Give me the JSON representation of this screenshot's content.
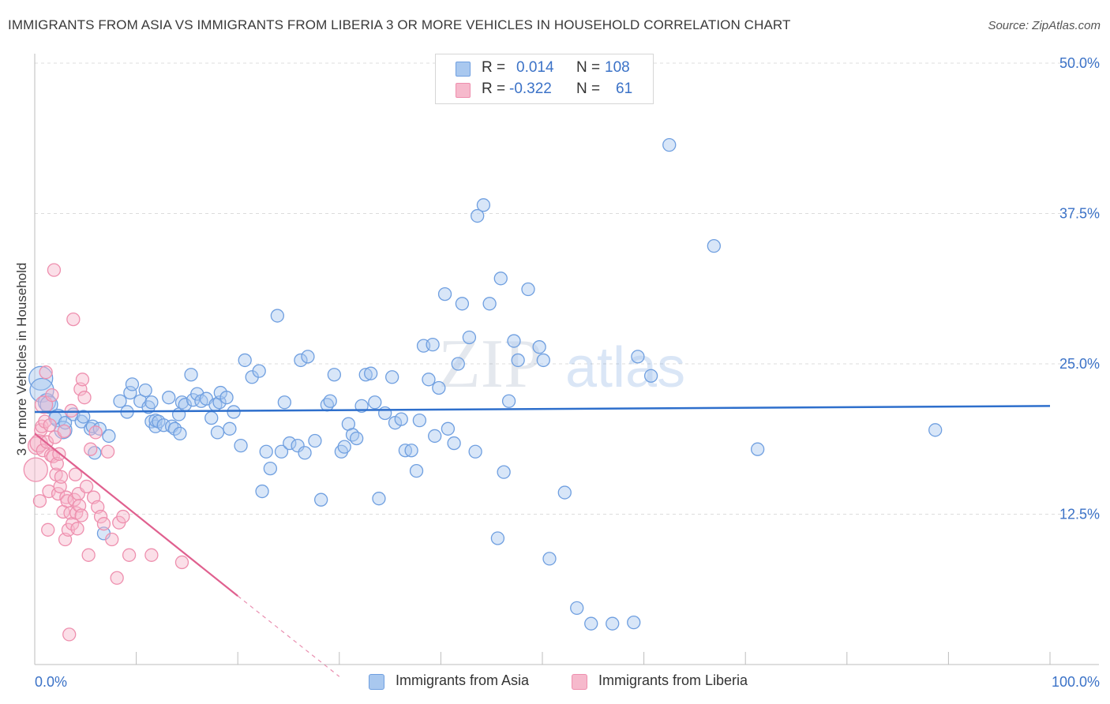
{
  "title": "IMMIGRANTS FROM ASIA VS IMMIGRANTS FROM LIBERIA 3 OR MORE VEHICLES IN HOUSEHOLD CORRELATION CHART",
  "source": "Source: ZipAtlas.com",
  "legend": {
    "r_label": "R =",
    "n_label": "N =",
    "asia": {
      "r": "0.014",
      "n": "108"
    },
    "liberia": {
      "r": "-0.322",
      "n": "61"
    }
  },
  "watermark": {
    "zip": "ZIP",
    "atlas": "atlas"
  },
  "colors": {
    "asia_fill": "#a9c8ef",
    "asia_stroke": "#6f9fe0",
    "asia_line": "#2e6fcc",
    "liberia_fill": "#f6b9cc",
    "liberia_stroke": "#ee8fae",
    "liberia_line": "#e0608f",
    "grid": "#dcdcdc",
    "axis_text": "#3b72c7"
  },
  "chart_data": {
    "type": "scatter",
    "title": "IMMIGRANTS FROM ASIA VS IMMIGRANTS FROM LIBERIA 3 OR MORE VEHICLES IN HOUSEHOLD CORRELATION CHART",
    "xlabel": "",
    "ylabel": "3 or more Vehicles in Household",
    "xlim": [
      0,
      100
    ],
    "ylim": [
      0,
      50
    ],
    "x_tick_labels": [
      "0.0%",
      "100.0%"
    ],
    "y_ticks": [
      12.5,
      25.0,
      37.5,
      50.0
    ],
    "y_tick_labels": [
      "12.5%",
      "25.0%",
      "37.5%",
      "50.0%"
    ],
    "grid": true,
    "legend_position": "top-center",
    "series": [
      {
        "name": "Immigrants from Asia",
        "r": 0.014,
        "n": 108,
        "trend": {
          "x": [
            0,
            100
          ],
          "y": [
            21.0,
            21.5
          ]
        },
        "points": [
          [
            0.6,
            23.8,
            3
          ],
          [
            0.7,
            22.8,
            3
          ],
          [
            1.2,
            21.8,
            2
          ],
          [
            1.4,
            21.6,
            2
          ],
          [
            2,
            20.5,
            1
          ],
          [
            2.3,
            20.5,
            2
          ],
          [
            2.8,
            19.5,
            2
          ],
          [
            3.0,
            20.1,
            1
          ],
          [
            3.8,
            20.8,
            1
          ],
          [
            4.6,
            20.2,
            1
          ],
          [
            4.8,
            20.6,
            1
          ],
          [
            5.5,
            19.6,
            1
          ],
          [
            5.7,
            19.8,
            1
          ],
          [
            5.9,
            17.6,
            1
          ],
          [
            6.4,
            19.6,
            1
          ],
          [
            7.3,
            19.0,
            1
          ],
          [
            6.8,
            10.9,
            1
          ],
          [
            8.4,
            21.9,
            1
          ],
          [
            9.1,
            21.0,
            1
          ],
          [
            9.4,
            22.6,
            1
          ],
          [
            9.6,
            23.3,
            1
          ],
          [
            10.4,
            21.9,
            1
          ],
          [
            10.9,
            22.8,
            1
          ],
          [
            11.2,
            21.4,
            1
          ],
          [
            11.5,
            21.8,
            1
          ],
          [
            11.5,
            20.2,
            1
          ],
          [
            11.9,
            19.8,
            1
          ],
          [
            11.9,
            20.3,
            1
          ],
          [
            12.2,
            20.2,
            1
          ],
          [
            12.7,
            19.9,
            1
          ],
          [
            13.2,
            22.2,
            1
          ],
          [
            13.5,
            19.8,
            1
          ],
          [
            13.8,
            19.6,
            1
          ],
          [
            14.2,
            20.8,
            1
          ],
          [
            14.3,
            19.2,
            1
          ],
          [
            14.5,
            21.8,
            1
          ],
          [
            14.8,
            21.6,
            1
          ],
          [
            15.4,
            24.1,
            1
          ],
          [
            15.6,
            22.0,
            1
          ],
          [
            16.0,
            22.5,
            1
          ],
          [
            16.4,
            21.9,
            1
          ],
          [
            16.9,
            22.1,
            1
          ],
          [
            17.4,
            20.5,
            1
          ],
          [
            17.8,
            21.6,
            1
          ],
          [
            18.0,
            19.3,
            1
          ],
          [
            18.2,
            21.8,
            1
          ],
          [
            18.3,
            22.6,
            1
          ],
          [
            18.9,
            22.2,
            1
          ],
          [
            19.2,
            19.6,
            1
          ],
          [
            19.6,
            21.0,
            1
          ],
          [
            20.3,
            18.2,
            1
          ],
          [
            20.7,
            25.3,
            1
          ],
          [
            21.4,
            23.9,
            1
          ],
          [
            22.1,
            24.4,
            1
          ],
          [
            22.4,
            14.4,
            1
          ],
          [
            22.8,
            17.7,
            1
          ],
          [
            23.2,
            16.3,
            1
          ],
          [
            23.9,
            29.0,
            1
          ],
          [
            24.3,
            17.7,
            1
          ],
          [
            24.6,
            21.8,
            1
          ],
          [
            25.1,
            18.4,
            1
          ],
          [
            25.9,
            18.2,
            1
          ],
          [
            26.2,
            25.3,
            1
          ],
          [
            26.6,
            17.6,
            1
          ],
          [
            26.9,
            25.6,
            1
          ],
          [
            27.6,
            18.6,
            1
          ],
          [
            28.2,
            13.7,
            1
          ],
          [
            28.8,
            21.6,
            1
          ],
          [
            29.1,
            21.9,
            1
          ],
          [
            29.5,
            24.1,
            1
          ],
          [
            30.2,
            17.7,
            1
          ],
          [
            30.5,
            18.1,
            1
          ],
          [
            30.9,
            20.0,
            1
          ],
          [
            31.3,
            19.1,
            1
          ],
          [
            31.7,
            18.8,
            1
          ],
          [
            32.2,
            21.5,
            1
          ],
          [
            32.6,
            24.1,
            1
          ],
          [
            33.1,
            24.2,
            1
          ],
          [
            33.5,
            21.8,
            1
          ],
          [
            33.9,
            13.8,
            1
          ],
          [
            34.5,
            20.9,
            1
          ],
          [
            35.2,
            23.9,
            1
          ],
          [
            35.5,
            20.1,
            1
          ],
          [
            36.1,
            20.4,
            1
          ],
          [
            36.5,
            17.8,
            1
          ],
          [
            37.1,
            17.8,
            1
          ],
          [
            37.6,
            16.1,
            1
          ],
          [
            37.9,
            20.3,
            1
          ],
          [
            38.3,
            26.5,
            1
          ],
          [
            38.8,
            23.7,
            1
          ],
          [
            39.2,
            26.6,
            1
          ],
          [
            39.4,
            19.0,
            1
          ],
          [
            39.8,
            23.0,
            1
          ],
          [
            40.4,
            30.8,
            1
          ],
          [
            40.7,
            19.6,
            1
          ],
          [
            41.3,
            18.4,
            1
          ],
          [
            41.7,
            25.0,
            1
          ],
          [
            42.1,
            30.0,
            1
          ],
          [
            42.8,
            27.2,
            1
          ],
          [
            43.4,
            17.7,
            1
          ],
          [
            43.6,
            37.3,
            1
          ],
          [
            44.2,
            38.2,
            1
          ],
          [
            44.8,
            30.0,
            1
          ],
          [
            45.9,
            32.1,
            1
          ],
          [
            45.6,
            10.5,
            1
          ],
          [
            46.2,
            16.0,
            1
          ],
          [
            46.7,
            21.9,
            1
          ],
          [
            47.2,
            26.9,
            1
          ],
          [
            47.6,
            25.3,
            1
          ],
          [
            48.6,
            31.2,
            1
          ],
          [
            49.7,
            26.4,
            1
          ],
          [
            50.1,
            25.3,
            1
          ],
          [
            50.7,
            8.8,
            1
          ],
          [
            52.2,
            14.3,
            1
          ],
          [
            53.4,
            4.7,
            1
          ],
          [
            54.8,
            3.4,
            1
          ],
          [
            56.9,
            3.4,
            1
          ],
          [
            59.0,
            3.5,
            1
          ],
          [
            59.4,
            25.6,
            1
          ],
          [
            60.7,
            24.0,
            1
          ],
          [
            62.5,
            43.2,
            1
          ],
          [
            66.9,
            34.8,
            1
          ],
          [
            71.2,
            17.9,
            1
          ],
          [
            88.7,
            19.5,
            1
          ]
        ]
      },
      {
        "name": "Immigrants from Liberia",
        "r": -0.322,
        "n": 61,
        "trend": {
          "x": [
            0,
            20
          ],
          "y": [
            19.2,
            5.7
          ]
        },
        "trend_dashed": {
          "x": [
            20,
            30
          ],
          "y": [
            5.7,
            -1.0
          ]
        },
        "points": [
          [
            0.1,
            16.2,
            3
          ],
          [
            0.2,
            18.2,
            2
          ],
          [
            0.4,
            18.4,
            2
          ],
          [
            0.5,
            13.6,
            1
          ],
          [
            0.6,
            19.5,
            1
          ],
          [
            0.7,
            19.8,
            1
          ],
          [
            0.8,
            17.8,
            1
          ],
          [
            0.9,
            21.6,
            2
          ],
          [
            1.0,
            20.2,
            1
          ],
          [
            1.1,
            24.3,
            1
          ],
          [
            1.2,
            18.5,
            1
          ],
          [
            1.3,
            11.2,
            1
          ],
          [
            1.4,
            14.4,
            1
          ],
          [
            1.5,
            19.9,
            1
          ],
          [
            1.6,
            17.4,
            1
          ],
          [
            1.7,
            22.4,
            1
          ],
          [
            1.8,
            17.3,
            1
          ],
          [
            1.9,
            32.8,
            1
          ],
          [
            2.0,
            18.9,
            1
          ],
          [
            2.1,
            15.8,
            1
          ],
          [
            2.2,
            16.7,
            1
          ],
          [
            2.3,
            14.2,
            1
          ],
          [
            2.4,
            17.5,
            1
          ],
          [
            2.5,
            14.8,
            1
          ],
          [
            2.6,
            15.6,
            1
          ],
          [
            2.8,
            12.7,
            1
          ],
          [
            2.9,
            19.4,
            1
          ],
          [
            3.0,
            10.4,
            1
          ],
          [
            3.1,
            13.9,
            1
          ],
          [
            3.2,
            13.6,
            1
          ],
          [
            3.3,
            11.2,
            1
          ],
          [
            3.4,
            2.5,
            1
          ],
          [
            3.5,
            12.6,
            1
          ],
          [
            3.6,
            21.1,
            1
          ],
          [
            3.7,
            11.7,
            1
          ],
          [
            3.8,
            28.7,
            1
          ],
          [
            3.9,
            13.7,
            1
          ],
          [
            4.0,
            15.8,
            1
          ],
          [
            4.1,
            12.6,
            1
          ],
          [
            4.2,
            11.3,
            1
          ],
          [
            4.3,
            14.2,
            1
          ],
          [
            4.4,
            13.2,
            1
          ],
          [
            4.5,
            22.9,
            1
          ],
          [
            4.6,
            12.4,
            1
          ],
          [
            4.7,
            23.7,
            1
          ],
          [
            4.9,
            22.2,
            1
          ],
          [
            5.1,
            14.8,
            1
          ],
          [
            5.3,
            9.1,
            1
          ],
          [
            5.5,
            17.9,
            1
          ],
          [
            5.8,
            13.9,
            1
          ],
          [
            6.0,
            19.3,
            1
          ],
          [
            6.2,
            13.1,
            1
          ],
          [
            6.5,
            12.3,
            1
          ],
          [
            6.8,
            11.7,
            1
          ],
          [
            7.2,
            17.7,
            1
          ],
          [
            7.6,
            10.4,
            1
          ],
          [
            8.1,
            7.2,
            1
          ],
          [
            8.3,
            11.8,
            1
          ],
          [
            8.7,
            12.3,
            1
          ],
          [
            9.3,
            9.1,
            1
          ],
          [
            11.5,
            9.1,
            1
          ],
          [
            14.5,
            8.5,
            1
          ]
        ]
      }
    ]
  }
}
